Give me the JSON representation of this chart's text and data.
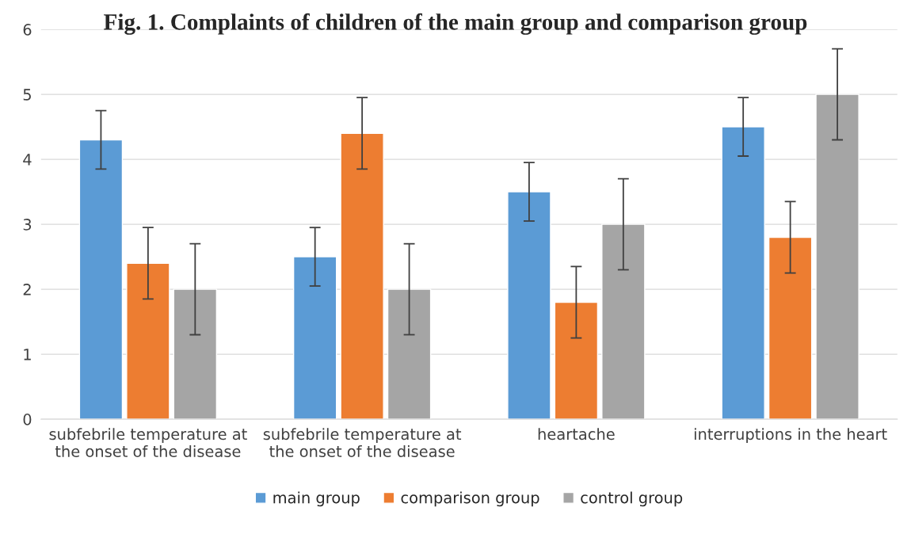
{
  "chart_data": {
    "type": "bar",
    "title": "Fig. 1. Complaints of children of the main group and comparison group",
    "categories": [
      "subfebrile temperature at\nthe onset of the disease",
      "subfebrile temperature at\nthe onset of the disease",
      "heartache",
      "interruptions in the heart"
    ],
    "series": [
      {
        "name": "main group",
        "color": "#5b9bd5",
        "values": [
          4.3,
          2.5,
          3.5,
          4.5
        ],
        "errors": [
          0.45,
          0.45,
          0.45,
          0.45
        ]
      },
      {
        "name": "comparison group",
        "color": "#ed7d31",
        "values": [
          2.4,
          4.4,
          1.8,
          2.8
        ],
        "errors": [
          0.55,
          0.55,
          0.55,
          0.55
        ]
      },
      {
        "name": "control group",
        "color": "#a5a5a5",
        "values": [
          2,
          2,
          3,
          5
        ],
        "errors": [
          0.7,
          0.7,
          0.7,
          0.7
        ]
      }
    ],
    "ylim": [
      0,
      6
    ],
    "yticks": [
      0,
      1,
      2,
      3,
      4,
      5,
      6
    ],
    "grid": "y",
    "legend": "bottom"
  }
}
